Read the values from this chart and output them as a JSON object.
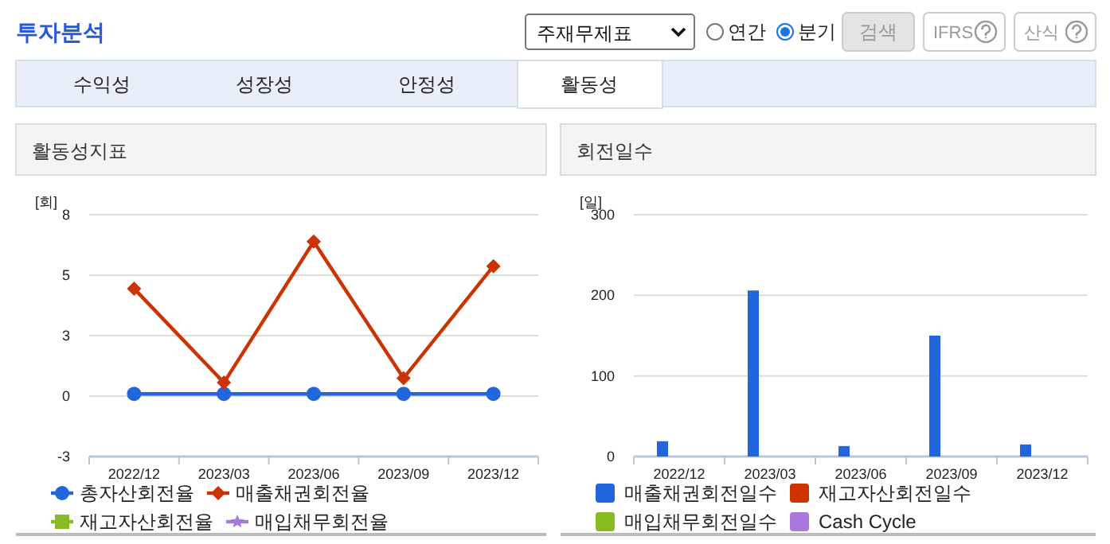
{
  "chart_data": [
    {
      "type": "other",
      "title": "투자분석",
      "annotations": [
        "주재무제표",
        "연간",
        "분기",
        "검색",
        "IFRS",
        "산식",
        "수익성",
        "성장성",
        "안정성",
        "활동성"
      ]
    },
    {
      "type": "line",
      "title": "활동성지표",
      "ylabel": "[회]",
      "categories": [
        "2022/12",
        "2023/03",
        "2023/06",
        "2023/09",
        "2023/12"
      ],
      "ylim": [
        -2.7,
        8.1
      ],
      "yticks": [
        {
          "value": -2.7,
          "label": "-3"
        },
        0,
        {
          "value": 2.7,
          "label": "3"
        },
        {
          "value": 5.4,
          "label": "5"
        },
        {
          "value": 8.1,
          "label": "8"
        }
      ],
      "grid": "y",
      "legend": "bottom",
      "series": [
        {
          "name": "총자산회전율",
          "color": "#2266dd",
          "marker": "circle",
          "values": [
            0.1,
            0.1,
            0.1,
            0.1,
            0.1
          ]
        },
        {
          "name": "매출채권회전율",
          "color": "#cc3300",
          "marker": "diamond",
          "values": [
            4.8,
            0.6,
            6.9,
            0.8,
            5.8
          ]
        },
        {
          "name": "재고자산회전율",
          "color": "#88bb22",
          "marker": "square",
          "values": [
            null,
            null,
            null,
            null,
            null
          ]
        },
        {
          "name": "매입채무회전율",
          "color": "#aa77dd",
          "marker": "star",
          "values": [
            null,
            null,
            null,
            null,
            null
          ]
        }
      ]
    },
    {
      "type": "bar",
      "title": "회전일수",
      "ylabel": "[일]",
      "categories": [
        "2022/12",
        "2023/03",
        "2023/06",
        "2023/09",
        "2023/12"
      ],
      "ylim": [
        0,
        300
      ],
      "yticks": [
        0,
        100,
        200,
        300
      ],
      "grid": "y",
      "legend": "bottom",
      "series": [
        {
          "name": "매출채권회전일수",
          "color": "#2266dd",
          "values": [
            19,
            206,
            13,
            150,
            15
          ]
        },
        {
          "name": "재고자산회전일수",
          "color": "#cc3300",
          "values": [
            null,
            null,
            null,
            null,
            null
          ]
        },
        {
          "name": "매입채무회전일수",
          "color": "#88bb22",
          "values": [
            null,
            null,
            null,
            null,
            null
          ]
        },
        {
          "name": "Cash Cycle",
          "color": "#aa77dd",
          "values": [
            null,
            null,
            null,
            null,
            null
          ]
        }
      ]
    }
  ]
}
